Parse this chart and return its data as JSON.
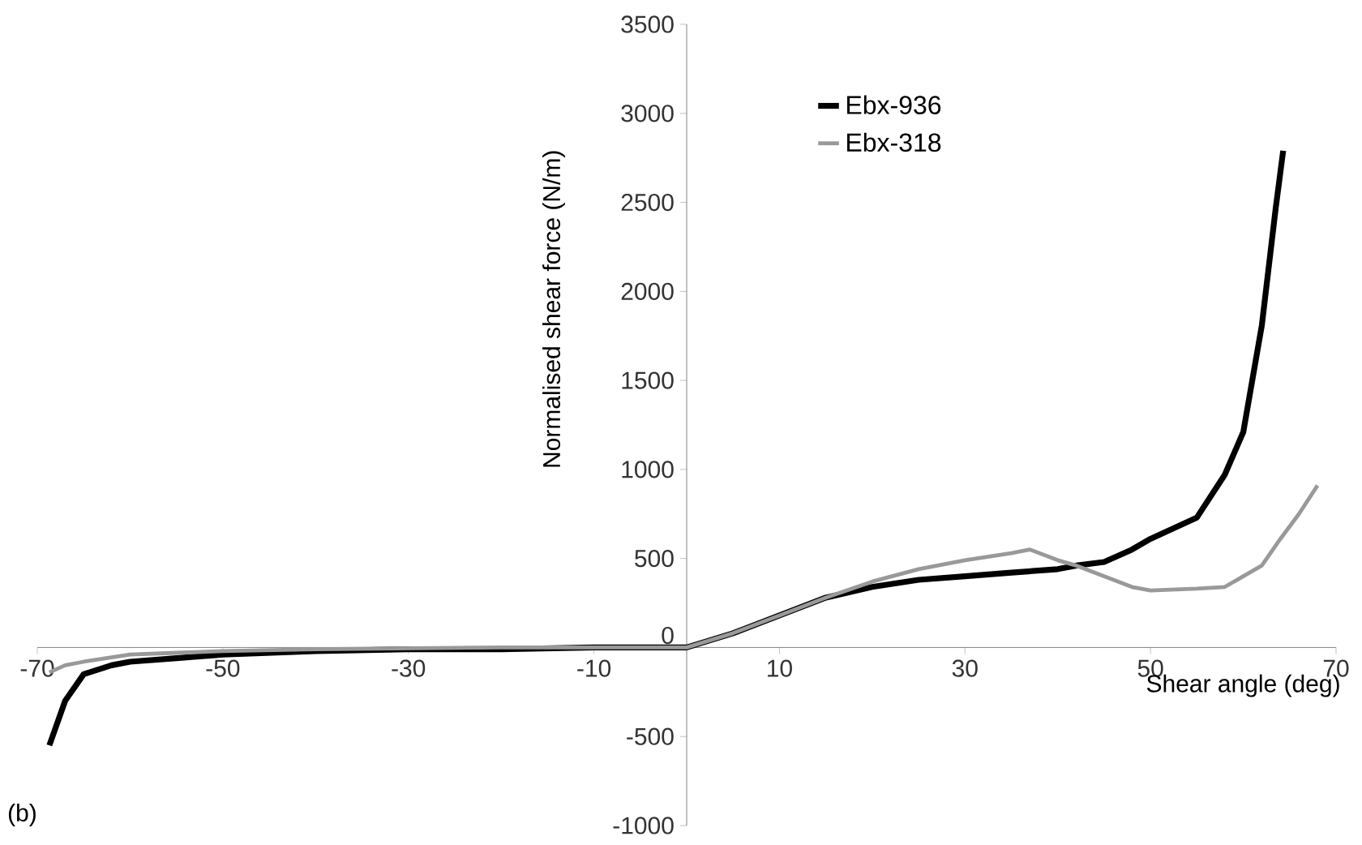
{
  "chart_data": {
    "type": "line",
    "xlabel": "Shear angle (deg)",
    "ylabel": "Normalised shear force (N/m)",
    "annotations": [
      "(b)"
    ],
    "xlim": [
      -70,
      70
    ],
    "xticks": [
      -70,
      -50,
      -30,
      -10,
      10,
      30,
      50,
      70
    ],
    "ylim": [
      -1000,
      3500
    ],
    "yticks": [
      -1000,
      -500,
      0,
      500,
      1000,
      1500,
      2000,
      2500,
      3000,
      3500
    ],
    "legend": "top",
    "grid": false,
    "marker": "none",
    "line_style": "solid",
    "series": [
      {
        "name": "Ebx-936",
        "color": "#000000",
        "x": [
          -68.7,
          -67,
          -65,
          -62,
          -60,
          -55,
          -50,
          -40,
          -30,
          -20,
          -10,
          0,
          5,
          10,
          15,
          20,
          25,
          30,
          35,
          40,
          42,
          45,
          48,
          50,
          55,
          58,
          60,
          62,
          63.5,
          64.3
        ],
        "values": [
          -550,
          -300,
          -150,
          -100,
          -80,
          -60,
          -40,
          -20,
          -10,
          -10,
          0,
          0,
          80,
          180,
          280,
          340,
          380,
          400,
          420,
          440,
          460,
          480,
          550,
          610,
          730,
          970,
          1210,
          1810,
          2470,
          2790
        ]
      },
      {
        "name": "Ebx-318",
        "color": "#999999",
        "x": [
          -68.7,
          -67,
          -65,
          -60,
          -55,
          -50,
          -40,
          -20,
          0,
          5,
          10,
          15,
          20,
          25,
          30,
          35,
          37,
          40,
          42,
          45,
          48,
          50,
          55,
          58,
          60,
          62,
          64,
          66,
          68
        ],
        "values": [
          -140,
          -100,
          -80,
          -40,
          -30,
          -20,
          -10,
          0,
          0,
          80,
          180,
          280,
          370,
          440,
          490,
          530,
          550,
          490,
          460,
          400,
          340,
          320,
          330,
          340,
          400,
          460,
          610,
          750,
          910
        ]
      }
    ]
  }
}
